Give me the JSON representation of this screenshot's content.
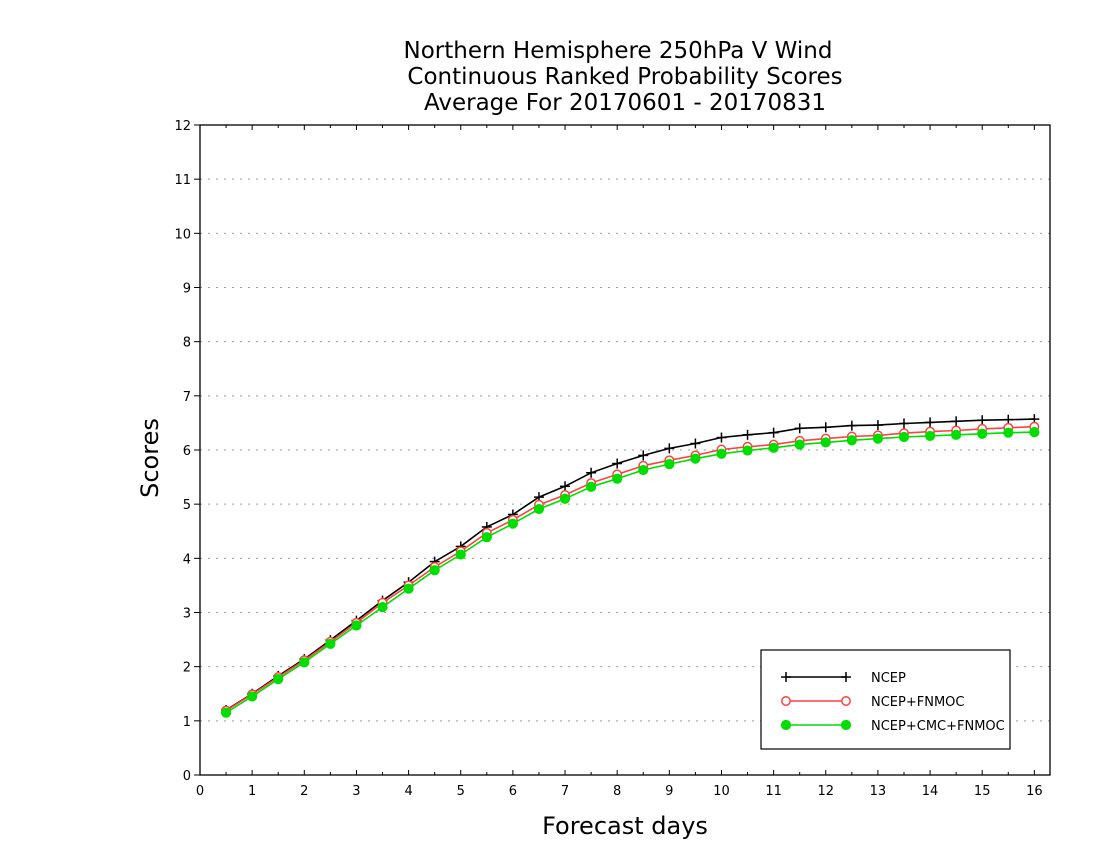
{
  "colors": {
    "background": "#ffffff",
    "frame": "#000000",
    "grid": "#9a9a9a"
  },
  "chart_data": {
    "type": "line",
    "title": [
      "Northern Hemisphere 250hPa V Wind",
      "Continuous Ranked Probability Scores",
      "Average For 20170601 - 20170831"
    ],
    "xlabel": "Forecast days",
    "ylabel": "Scores",
    "xlim": [
      0,
      16.3
    ],
    "ylim": [
      0,
      12
    ],
    "xticks": [
      0,
      1,
      2,
      3,
      4,
      5,
      6,
      7,
      8,
      9,
      10,
      11,
      12,
      13,
      14,
      15,
      16
    ],
    "yticks": [
      0,
      1,
      2,
      3,
      4,
      5,
      6,
      7,
      8,
      9,
      10,
      11,
      12
    ],
    "grid": "horizontal dotted",
    "legend_position": "bottom-right",
    "x": [
      0.5,
      1,
      1.5,
      2,
      2.5,
      3,
      3.5,
      4,
      4.5,
      5,
      5.5,
      6,
      6.5,
      7,
      7.5,
      8,
      8.5,
      9,
      9.5,
      10,
      10.5,
      11,
      11.5,
      12,
      12.5,
      13,
      13.5,
      14,
      14.5,
      15,
      15.5,
      16
    ],
    "series": [
      {
        "name": "NCEP",
        "color": "#000000",
        "marker": "plus",
        "values": [
          1.2,
          1.5,
          1.83,
          2.14,
          2.49,
          2.85,
          3.22,
          3.56,
          3.94,
          4.22,
          4.58,
          4.81,
          5.13,
          5.33,
          5.58,
          5.75,
          5.9,
          6.03,
          6.12,
          6.23,
          6.28,
          6.32,
          6.4,
          6.42,
          6.45,
          6.46,
          6.49,
          6.51,
          6.53,
          6.55,
          6.56,
          6.57
        ]
      },
      {
        "name": "NCEP+FNMOC",
        "color": "#ff4040",
        "marker": "open-circle",
        "values": [
          1.19,
          1.49,
          1.81,
          2.12,
          2.46,
          2.81,
          3.18,
          3.5,
          3.84,
          4.13,
          4.47,
          4.71,
          4.99,
          5.17,
          5.39,
          5.55,
          5.71,
          5.81,
          5.9,
          6.01,
          6.06,
          6.1,
          6.17,
          6.21,
          6.25,
          6.27,
          6.31,
          6.34,
          6.36,
          6.39,
          6.41,
          6.43
        ]
      },
      {
        "name": "NCEP+CMC+FNMOC",
        "color": "#00dd00",
        "marker": "filled-circle",
        "values": [
          1.15,
          1.45,
          1.77,
          2.08,
          2.42,
          2.76,
          3.1,
          3.44,
          3.78,
          4.07,
          4.39,
          4.64,
          4.91,
          5.1,
          5.32,
          5.47,
          5.63,
          5.74,
          5.84,
          5.93,
          5.99,
          6.04,
          6.1,
          6.14,
          6.18,
          6.21,
          6.24,
          6.26,
          6.28,
          6.3,
          6.32,
          6.33
        ]
      }
    ]
  }
}
